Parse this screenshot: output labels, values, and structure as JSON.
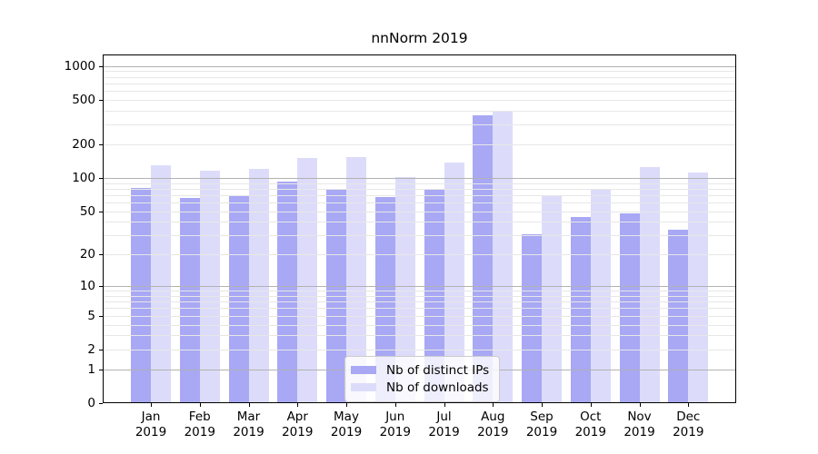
{
  "chart_data": {
    "type": "bar",
    "title": "nnNorm 2019",
    "categories": [
      "Jan",
      "Feb",
      "Mar",
      "Apr",
      "May",
      "Jun",
      "Jul",
      "Aug",
      "Sep",
      "Oct",
      "Nov",
      "Dec"
    ],
    "year_label": "2019",
    "series": [
      {
        "name": "Nb of distinct IPs",
        "color": "#a8a8f5",
        "values": [
          81,
          66,
          70,
          93,
          80,
          67,
          78,
          365,
          31,
          44,
          48,
          34
        ]
      },
      {
        "name": "Nb of downloads",
        "color": "#dcdcfa",
        "values": [
          130,
          116,
          121,
          150,
          153,
          101,
          137,
          400,
          70,
          80,
          125,
          112
        ]
      }
    ],
    "yscale": "log10(1+x)",
    "ylim": [
      0,
      1265
    ],
    "yticks": [
      0,
      1,
      2,
      5,
      10,
      20,
      50,
      100,
      200,
      500,
      1000
    ],
    "grid": "on",
    "grid_colors": {
      "major": "#b2b2b2",
      "minor": "#e7e7e7"
    },
    "major_grid_values": [
      1,
      10,
      100,
      1000
    ],
    "legend_position": "lower center"
  }
}
